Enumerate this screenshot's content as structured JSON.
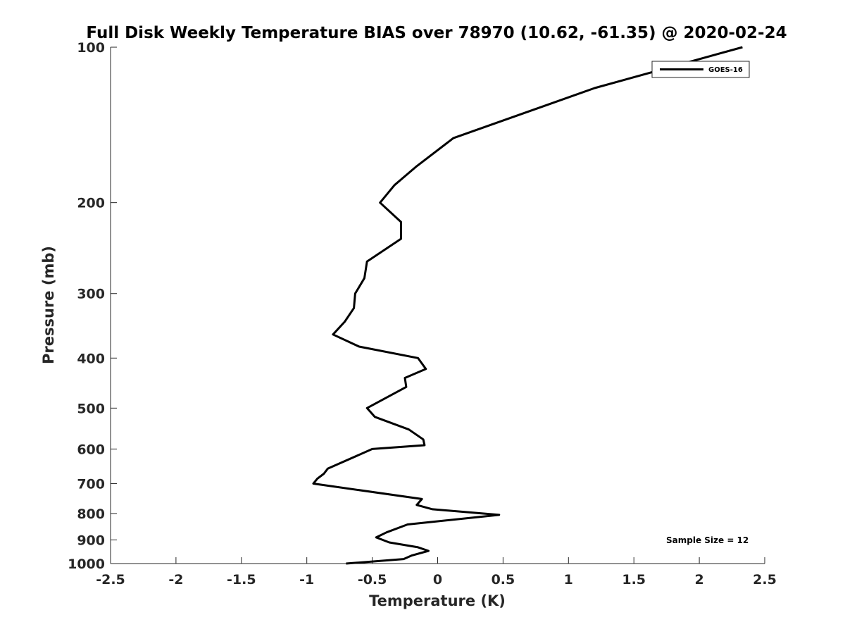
{
  "chart_data": {
    "type": "line",
    "title": "Full Disk Weekly Temperature BIAS over 78970 (10.62, -61.35) @ 2020-02-24",
    "xlabel": "Temperature (K)",
    "ylabel": "Pressure (mb)",
    "xlim": [
      -2.5,
      2.5
    ],
    "ylim": [
      100,
      1000
    ],
    "y_scale": "log",
    "y_reversed": true,
    "x_ticks": [
      "-2.5",
      "-2",
      "-1.5",
      "-1",
      "-0.5",
      "0",
      "0.5",
      "1",
      "1.5",
      "2",
      "2.5"
    ],
    "y_ticks": [
      "100",
      "200",
      "300",
      "400",
      "500",
      "600",
      "700",
      "800",
      "900",
      "1000"
    ],
    "grid": false,
    "legend_position": "top-right",
    "annotation": "Sample Size = 12",
    "series": [
      {
        "name": "GOES-16",
        "color": "#000000",
        "points": [
          {
            "x": 2.33,
            "p": 100
          },
          {
            "x": 1.2,
            "p": 120
          },
          {
            "x": 0.12,
            "p": 150
          },
          {
            "x": -0.16,
            "p": 170
          },
          {
            "x": -0.33,
            "p": 185
          },
          {
            "x": -0.44,
            "p": 200
          },
          {
            "x": -0.28,
            "p": 218
          },
          {
            "x": -0.28,
            "p": 235
          },
          {
            "x": -0.54,
            "p": 260
          },
          {
            "x": -0.56,
            "p": 280
          },
          {
            "x": -0.63,
            "p": 300
          },
          {
            "x": -0.64,
            "p": 320
          },
          {
            "x": -0.71,
            "p": 340
          },
          {
            "x": -0.8,
            "p": 360
          },
          {
            "x": -0.6,
            "p": 380
          },
          {
            "x": -0.15,
            "p": 400
          },
          {
            "x": -0.09,
            "p": 420
          },
          {
            "x": -0.25,
            "p": 437
          },
          {
            "x": -0.24,
            "p": 455
          },
          {
            "x": -0.54,
            "p": 500
          },
          {
            "x": -0.48,
            "p": 520
          },
          {
            "x": -0.22,
            "p": 550
          },
          {
            "x": -0.11,
            "p": 575
          },
          {
            "x": -0.1,
            "p": 590
          },
          {
            "x": -0.5,
            "p": 600
          },
          {
            "x": -0.84,
            "p": 655
          },
          {
            "x": -0.87,
            "p": 670
          },
          {
            "x": -0.92,
            "p": 685
          },
          {
            "x": -0.95,
            "p": 700
          },
          {
            "x": -0.12,
            "p": 750
          },
          {
            "x": -0.16,
            "p": 770
          },
          {
            "x": -0.04,
            "p": 785
          },
          {
            "x": 0.47,
            "p": 805
          },
          {
            "x": -0.23,
            "p": 840
          },
          {
            "x": -0.39,
            "p": 870
          },
          {
            "x": -0.47,
            "p": 890
          },
          {
            "x": -0.37,
            "p": 910
          },
          {
            "x": -0.15,
            "p": 930
          },
          {
            "x": -0.07,
            "p": 945
          },
          {
            "x": -0.2,
            "p": 965
          },
          {
            "x": -0.26,
            "p": 980
          },
          {
            "x": -0.7,
            "p": 1000
          }
        ]
      }
    ]
  }
}
